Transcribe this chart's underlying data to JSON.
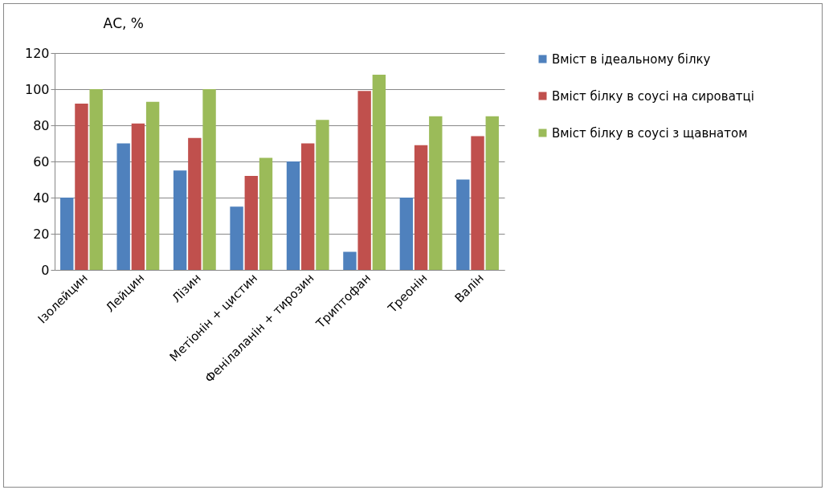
{
  "chart_data": {
    "type": "bar",
    "ylabel": "АС, %",
    "categories": [
      "Ізолейцин",
      "Лейцин",
      "Лізин",
      "Метіонін + цистин",
      "Фенілаланін + тирозин",
      "Триптофан",
      "Треонін",
      "Валін"
    ],
    "series": [
      {
        "name": "Вміст в ідеальному білку",
        "color": "#4f81bd",
        "values": [
          40,
          70,
          55,
          35,
          60,
          10,
          40,
          50
        ]
      },
      {
        "name": "Вміст білку в соусі на сироватці",
        "color": "#c0504d",
        "values": [
          92,
          81,
          73,
          52,
          70,
          99,
          69,
          74
        ]
      },
      {
        "name": "Вміст білку в соусі з щавнатом",
        "color": "#9bbb59",
        "values": [
          100,
          93,
          100,
          62,
          83,
          108,
          85,
          85
        ]
      }
    ],
    "ylim": [
      0,
      120
    ],
    "yticks": [
      0,
      20,
      40,
      60,
      80,
      100,
      120
    ],
    "grid": "y",
    "legend": "right"
  }
}
